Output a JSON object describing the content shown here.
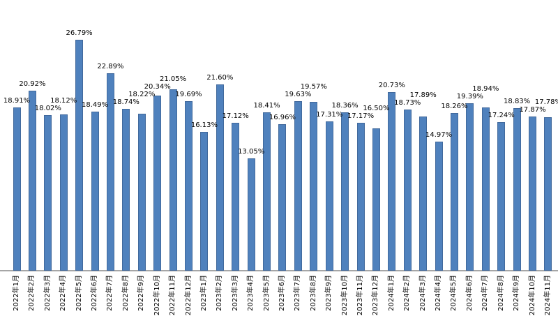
{
  "chart_data": {
    "type": "bar",
    "title": "",
    "xlabel": "",
    "ylabel": "",
    "categories": [
      "2022年1月",
      "2022年2月",
      "2022年3月",
      "2022年4月",
      "2022年5月",
      "2022年6月",
      "2022年7月",
      "2022年8月",
      "2022年9月",
      "2022年10月",
      "2022年11月",
      "2022年12月",
      "2023年1月",
      "2023年2月",
      "2023年3月",
      "2023年4月",
      "2023年5月",
      "2023年6月",
      "2023年7月",
      "2023年8月",
      "2023年9月",
      "2023年10月",
      "2023年11月",
      "2023年12月",
      "2024年1月",
      "2024年2月",
      "2024年3月",
      "2024年4月",
      "2024年5月",
      "2024年6月",
      "2024年7月",
      "2024年8月",
      "2024年9月",
      "2024年10月",
      "2024年11月"
    ],
    "values": [
      18.91,
      20.92,
      18.02,
      18.12,
      26.79,
      18.49,
      22.89,
      18.74,
      18.22,
      20.34,
      21.05,
      19.69,
      16.13,
      21.6,
      17.12,
      13.05,
      18.41,
      16.96,
      19.63,
      19.57,
      17.31,
      18.36,
      17.17,
      16.5,
      20.73,
      18.73,
      17.89,
      14.97,
      18.26,
      19.39,
      18.94,
      17.24,
      18.83,
      17.87,
      17.78
    ],
    "data_labels": [
      "18.91%",
      "20.92%",
      "18.02%",
      "18.12%",
      "26.79%",
      "18.49%",
      "22.89%",
      "18.74%",
      "18.22%",
      "20.34%",
      "21.05%",
      "19.69%",
      "16.13%",
      "21.60%",
      "17.12%",
      "13.05%",
      "18.41%",
      "16.96%",
      "19.63%",
      "19.57%",
      "17.31%",
      "18.36%",
      "17.17%",
      "16.50%",
      "20.73%",
      "18.73%",
      "17.89%",
      "14.97%",
      "18.26%",
      "19.39%",
      "18.94%",
      "17.24%",
      "18.83%",
      "17.87%",
      "17.78%"
    ],
    "ylim": [
      0,
      30
    ],
    "grid": false,
    "legend_position": "none",
    "bar_color": "#4f81bd",
    "bar_border_color": "#41699c",
    "axis_color": "#a6a6a6",
    "label_color": "#000000"
  }
}
